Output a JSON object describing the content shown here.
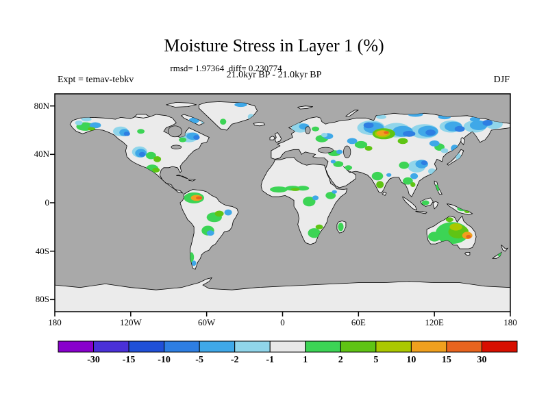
{
  "title": "Moisture Stress in Layer 1 (%)",
  "stats_line": "rmsd= 1.97364  diff= 0.230774",
  "header": {
    "left": "Expt = temav-tebkv",
    "center": "21.0kyr BP - 21.0kyr BP",
    "right": "DJF"
  },
  "chart_data": {
    "type": "heatmap",
    "subtype": "filled-contour anomaly world map, equirectangular projection",
    "title": "Moisture Stress in Layer 1 (%)",
    "stats": {
      "rmsd": 1.97364,
      "diff": 0.230774
    },
    "experiment": "temav-tebkv",
    "fields_compared": "21.0kyr BP - 21.0kyr BP",
    "season": "DJF",
    "lat_ticks": [
      {
        "label": "80N",
        "lat": 80
      },
      {
        "label": "40N",
        "lat": 40
      },
      {
        "label": "0",
        "lat": 0
      },
      {
        "label": "40S",
        "lat": -40
      },
      {
        "label": "80S",
        "lat": -80
      }
    ],
    "lon_ticks": [
      {
        "label": "180",
        "lon": -180
      },
      {
        "label": "120W",
        "lon": -120
      },
      {
        "label": "60W",
        "lon": -60
      },
      {
        "label": "0",
        "lon": 0
      },
      {
        "label": "60E",
        "lon": 60
      },
      {
        "label": "120E",
        "lon": 120
      },
      {
        "label": "180",
        "lon": 180
      }
    ],
    "colorbar_levels": [
      -30,
      -15,
      -10,
      -5,
      -2,
      -1,
      1,
      2,
      5,
      10,
      15,
      30
    ],
    "colorbar_colors": [
      "#8800cc",
      "#4a30d8",
      "#2050d8",
      "#2e7ee2",
      "#3fa8e8",
      "#90d5ea",
      "#e8e8e8",
      "#3cd455",
      "#5fc414",
      "#abc800",
      "#f0a01e",
      "#e8641e",
      "#d80f00"
    ],
    "ocean_color": "#a9a9a9",
    "land_color": "#ebebeb",
    "axis_ranges": {
      "lon": [
        -180,
        180
      ],
      "lat": [
        -90,
        90
      ]
    },
    "legend_position": "bottom colorbar"
  }
}
